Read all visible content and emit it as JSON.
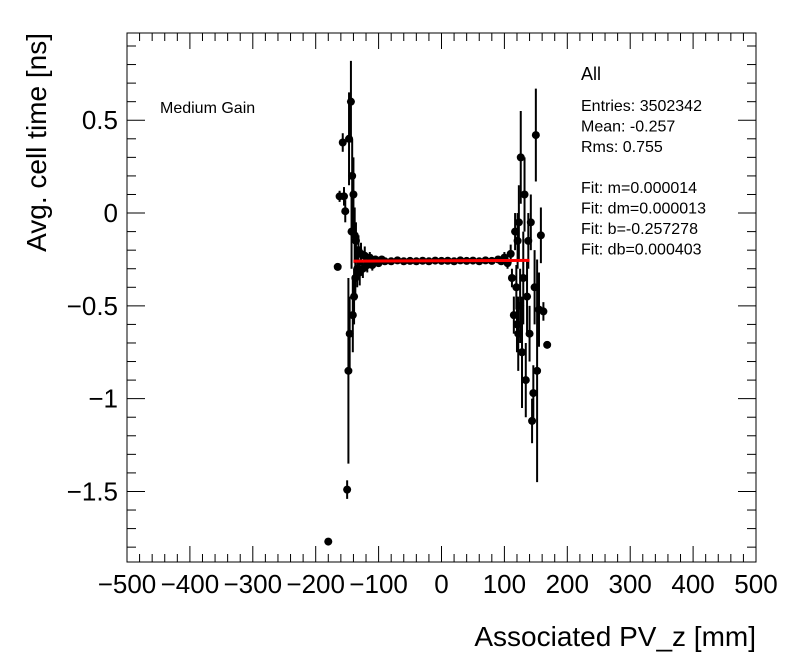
{
  "chart_data": {
    "type": "scatter",
    "xlabel": "Associated PV_z [mm]",
    "ylabel": "Avg. cell time [ns]",
    "xlim": [
      -500,
      500
    ],
    "ylim": [
      -1.88,
      0.97
    ],
    "x_ticks": [
      -500,
      -400,
      -300,
      -200,
      -100,
      0,
      100,
      200,
      300,
      400,
      500
    ],
    "x_tick_labels": [
      "−500",
      "−400",
      "−300",
      "−200",
      "−100",
      "0",
      "100",
      "200",
      "300",
      "400",
      "500"
    ],
    "y_ticks": [
      0.5,
      0,
      -0.5,
      -1,
      -1.5
    ],
    "y_tick_labels": [
      "0.5",
      "0",
      "−0.5",
      "−1",
      "−1.5"
    ],
    "grid": false,
    "annotation": "Medium Gain",
    "stats": {
      "title": "All",
      "lines": [
        "Entries: 3502342",
        "Mean: -0.257",
        "Rms: 0.755",
        "",
        "Fit: m=0.000014",
        "Fit: dm=0.000013",
        "Fit: b=-0.257278",
        "Fit: db=0.000403"
      ]
    },
    "points": [
      {
        "x": -180,
        "y": -1.77,
        "err": 0
      },
      {
        "x": -165,
        "y": -0.29,
        "err": 0.02
      },
      {
        "x": -162,
        "y": 0.09,
        "err": 0.03
      },
      {
        "x": -157,
        "y": 0.38,
        "err": 0.05
      },
      {
        "x": -155,
        "y": 0.09,
        "err": 0.05
      },
      {
        "x": -153,
        "y": 0.01,
        "err": 0.06
      },
      {
        "x": -150,
        "y": -1.49,
        "err": 0.05
      },
      {
        "x": -148,
        "y": -0.85,
        "err": 0.5
      },
      {
        "x": -147,
        "y": 0.4,
        "err": 0.25
      },
      {
        "x": -146,
        "y": -0.65,
        "err": 0.2
      },
      {
        "x": -144,
        "y": 0.6,
        "err": 0.22
      },
      {
        "x": -143,
        "y": -0.1,
        "err": 0.2
      },
      {
        "x": -142,
        "y": 0.2,
        "err": 0.2
      },
      {
        "x": -141,
        "y": -0.55,
        "err": 0.2
      },
      {
        "x": -140,
        "y": 0.1,
        "err": 0.2
      },
      {
        "x": -139,
        "y": -0.45,
        "err": 0.15
      },
      {
        "x": -138,
        "y": -0.12,
        "err": 0.15
      },
      {
        "x": -137,
        "y": -0.35,
        "err": 0.12
      },
      {
        "x": -136,
        "y": -0.15,
        "err": 0.1
      },
      {
        "x": -134,
        "y": -0.3,
        "err": 0.1
      },
      {
        "x": -132,
        "y": -0.2,
        "err": 0.08
      },
      {
        "x": -130,
        "y": -0.32,
        "err": 0.07
      },
      {
        "x": -128,
        "y": -0.22,
        "err": 0.06
      },
      {
        "x": -125,
        "y": -0.3,
        "err": 0.05
      },
      {
        "x": -122,
        "y": -0.23,
        "err": 0.05
      },
      {
        "x": -118,
        "y": -0.28,
        "err": 0.04
      },
      {
        "x": -114,
        "y": -0.24,
        "err": 0.03
      },
      {
        "x": -110,
        "y": -0.28,
        "err": 0.03
      },
      {
        "x": -105,
        "y": -0.25,
        "err": 0.02
      },
      {
        "x": -100,
        "y": -0.27,
        "err": 0.02
      },
      {
        "x": -95,
        "y": -0.25,
        "err": 0.015
      },
      {
        "x": -90,
        "y": -0.26,
        "err": 0.012
      },
      {
        "x": -80,
        "y": -0.26,
        "err": 0.01
      },
      {
        "x": -70,
        "y": -0.255,
        "err": 0.01
      },
      {
        "x": -60,
        "y": -0.26,
        "err": 0.008
      },
      {
        "x": -50,
        "y": -0.258,
        "err": 0.008
      },
      {
        "x": -40,
        "y": -0.26,
        "err": 0.008
      },
      {
        "x": -30,
        "y": -0.257,
        "err": 0.008
      },
      {
        "x": -20,
        "y": -0.26,
        "err": 0.008
      },
      {
        "x": -10,
        "y": -0.256,
        "err": 0.008
      },
      {
        "x": 0,
        "y": -0.258,
        "err": 0.008
      },
      {
        "x": 10,
        "y": -0.257,
        "err": 0.008
      },
      {
        "x": 20,
        "y": -0.26,
        "err": 0.008
      },
      {
        "x": 30,
        "y": -0.255,
        "err": 0.008
      },
      {
        "x": 40,
        "y": -0.258,
        "err": 0.008
      },
      {
        "x": 50,
        "y": -0.256,
        "err": 0.008
      },
      {
        "x": 60,
        "y": -0.26,
        "err": 0.01
      },
      {
        "x": 70,
        "y": -0.255,
        "err": 0.01
      },
      {
        "x": 80,
        "y": -0.258,
        "err": 0.012
      },
      {
        "x": 90,
        "y": -0.25,
        "err": 0.015
      },
      {
        "x": 95,
        "y": -0.26,
        "err": 0.02
      },
      {
        "x": 100,
        "y": -0.24,
        "err": 0.03
      },
      {
        "x": 105,
        "y": -0.27,
        "err": 0.03
      },
      {
        "x": 110,
        "y": -0.22,
        "err": 0.05
      },
      {
        "x": 112,
        "y": -0.35,
        "err": 0.05
      },
      {
        "x": 115,
        "y": -0.55,
        "err": 0.1
      },
      {
        "x": 117,
        "y": -0.1,
        "err": 0.1
      },
      {
        "x": 119,
        "y": -0.4,
        "err": 0.12
      },
      {
        "x": 120,
        "y": -0.6,
        "err": 0.15
      },
      {
        "x": 121,
        "y": -0.15,
        "err": 0.15
      },
      {
        "x": 122,
        "y": -0.65,
        "err": 0.2
      },
      {
        "x": 123,
        "y": -0.05,
        "err": 0.2
      },
      {
        "x": 125,
        "y": -0.5,
        "err": 0.2
      },
      {
        "x": 126,
        "y": 0.3,
        "err": 0.25
      },
      {
        "x": 128,
        "y": -0.75,
        "err": 0.3
      },
      {
        "x": 130,
        "y": -0.35,
        "err": 0.25
      },
      {
        "x": 132,
        "y": 0.1,
        "err": 0.2
      },
      {
        "x": 134,
        "y": -0.9,
        "err": 0.2
      },
      {
        "x": 136,
        "y": -0.45,
        "err": 0.2
      },
      {
        "x": 138,
        "y": -0.15,
        "err": 0.15
      },
      {
        "x": 140,
        "y": -0.65,
        "err": 0.15
      },
      {
        "x": 142,
        "y": -0.05,
        "err": 0.15
      },
      {
        "x": 144,
        "y": -1.12,
        "err": 0.12
      },
      {
        "x": 146,
        "y": -0.97,
        "err": 0.15
      },
      {
        "x": 148,
        "y": -0.4,
        "err": 0.2
      },
      {
        "x": 150,
        "y": 0.42,
        "err": 0.25
      },
      {
        "x": 152,
        "y": -0.85,
        "err": 0.6
      },
      {
        "x": 155,
        "y": -0.52,
        "err": 0.2
      },
      {
        "x": 158,
        "y": -0.12,
        "err": 0.15
      },
      {
        "x": 162,
        "y": -0.53,
        "err": 0.05
      },
      {
        "x": 168,
        "y": -0.71,
        "err": 0.02
      }
    ],
    "fit_line": {
      "x": [
        -140,
        140
      ],
      "y": [
        -0.259,
        -0.255
      ],
      "color": "#ff0000"
    },
    "marker_color": "#000000"
  }
}
